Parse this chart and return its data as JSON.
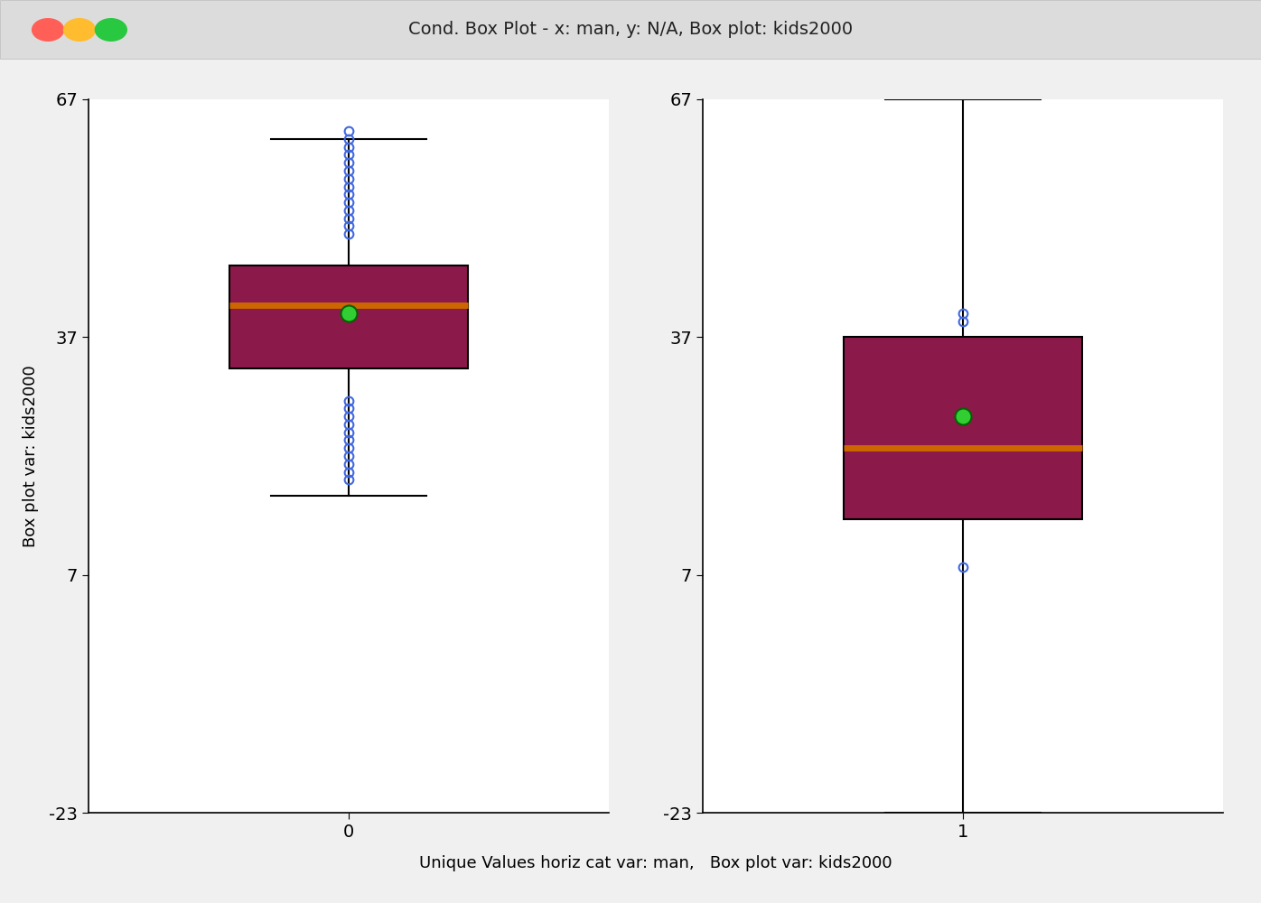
{
  "title": "Cond. Box Plot - x: man, y: N/A, Box plot: kids2000",
  "xlabel": "Unique Values horiz cat var: man,   Box plot var: kids2000",
  "ylabel": "Box plot var: kids2000",
  "ylim": [
    -23,
    67
  ],
  "yticks": [
    -23,
    7,
    37,
    67
  ],
  "group0_label": "0",
  "group1_label": "1",
  "box_color": "#8B1A4A",
  "median_color": "#CC6600",
  "mean_color": "#32CD32",
  "outlier_color": "#4169E1",
  "background_color": "#F0F0F0",
  "panel_color": "#FFFFFF",
  "group0": {
    "q1": 33,
    "median": 41,
    "q3": 46,
    "mean": 40,
    "whisker_low": 17,
    "whisker_high": 62,
    "outliers": [
      63,
      62,
      61,
      60,
      59,
      58,
      57,
      56,
      55,
      54,
      53,
      52,
      51,
      50,
      29,
      28,
      27,
      26,
      25,
      24,
      23,
      22,
      21,
      20,
      19
    ]
  },
  "group1": {
    "q1": 14,
    "median": 23,
    "q3": 37,
    "mean": 27,
    "whisker_low": -23,
    "whisker_high": 67,
    "outliers": [
      40,
      39,
      8
    ]
  },
  "title_fontsize": 14,
  "axis_fontsize": 13,
  "tick_fontsize": 14
}
